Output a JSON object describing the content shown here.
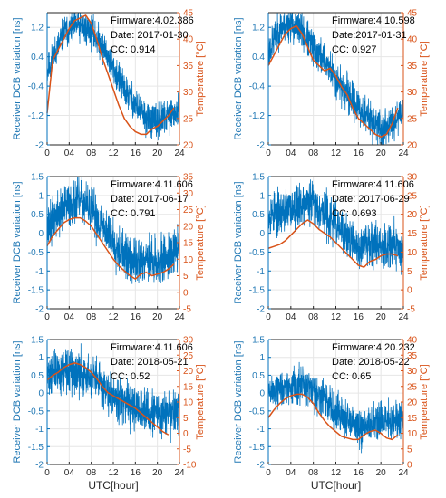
{
  "colors": {
    "dcb": "#0072bd",
    "temp": "#d95319",
    "grid": "#e6e6e6",
    "axis": "#262626"
  },
  "chart_data": [
    {
      "type": "line",
      "xlabel": "",
      "ylabel": "Receiver DCB variation [ns]",
      "y2label": "Temperature [°C]",
      "xlim": [
        0,
        24
      ],
      "xticks": [
        "0",
        "04",
        "08",
        "12",
        "16",
        "20",
        "24"
      ],
      "ylim": [
        -2,
        1.6
      ],
      "yticks": [
        "-2",
        "-1.2",
        "-0.4",
        "0.4",
        "1.2"
      ],
      "yticks_values": [
        -2,
        -1.2,
        -0.4,
        0.4,
        1.2
      ],
      "y2lim": [
        20,
        45
      ],
      "y2ticks": [
        "20",
        "25",
        "30",
        "35",
        "40",
        "45"
      ],
      "y2ticks_values": [
        20,
        25,
        30,
        35,
        40,
        45
      ],
      "annotation": [
        "Firmware:4.02.386",
        "Date: 2017-01-30",
        "CC: 0.914"
      ],
      "grid": true,
      "seed": 11,
      "noise": 0.22,
      "dcb_trend": {
        "x": [
          0,
          3,
          5.5,
          8,
          10,
          12,
          14,
          16,
          18,
          20,
          22,
          24
        ],
        "y": [
          0.0,
          1.05,
          1.25,
          1.1,
          0.7,
          0.1,
          -0.5,
          -0.9,
          -1.3,
          -1.4,
          -1.2,
          -1.1
        ]
      },
      "temperature": {
        "x": [
          0,
          1,
          2,
          3,
          4,
          5,
          6,
          7,
          8,
          9,
          10,
          11,
          12,
          13,
          14,
          15,
          16,
          17,
          18,
          19,
          20,
          21,
          22,
          23
        ],
        "y": [
          26,
          36,
          38,
          40,
          42,
          43.5,
          44,
          44.5,
          43,
          40,
          36.5,
          33.5,
          30.5,
          27.5,
          25,
          23.5,
          22.5,
          22,
          22,
          23,
          23.5,
          24.5,
          25.5,
          27
        ]
      }
    },
    {
      "type": "line",
      "xlabel": "",
      "ylabel": "Receiver DCB variation [ns]",
      "y2label": "Temperature [°C]",
      "xlim": [
        0,
        24
      ],
      "xticks": [
        "0",
        "04",
        "08",
        "12",
        "16",
        "20",
        "24"
      ],
      "ylim": [
        -2,
        1.6
      ],
      "yticks": [
        "-2",
        "-1.2",
        "-0.4",
        "0.4",
        "1.2"
      ],
      "yticks_values": [
        -2,
        -1.2,
        -0.4,
        0.4,
        1.2
      ],
      "y2lim": [
        20,
        45
      ],
      "y2ticks": [
        "20",
        "25",
        "30",
        "35",
        "40",
        "45"
      ],
      "y2ticks_values": [
        20,
        25,
        30,
        35,
        40,
        45
      ],
      "annotation": [
        "Firmware:4.10.598",
        "Date:2017-01-31",
        "CC: 0.927"
      ],
      "grid": true,
      "seed": 23,
      "noise": 0.24,
      "dcb_trend": {
        "x": [
          0,
          2,
          4,
          6,
          8,
          10,
          12,
          14,
          16,
          18,
          20,
          22,
          24
        ],
        "y": [
          0.5,
          1.2,
          1.3,
          1.1,
          0.6,
          0.3,
          -0.2,
          -0.6,
          -1.0,
          -1.3,
          -1.6,
          -1.4,
          -1.0
        ]
      },
      "temperature": {
        "x": [
          0,
          1,
          2,
          3,
          4,
          5,
          6,
          7,
          8,
          9,
          10,
          11,
          12,
          13,
          14,
          15,
          16,
          17,
          18,
          19,
          20,
          21,
          22,
          23
        ],
        "y": [
          35,
          37,
          39,
          41,
          42,
          42.5,
          41,
          38.5,
          36,
          35,
          34,
          34.5,
          33,
          31,
          29.5,
          27,
          25,
          24,
          23,
          22,
          21.5,
          22,
          24,
          27
        ]
      }
    },
    {
      "type": "line",
      "xlabel": "",
      "ylabel": "Receiver DCB variation [ns]",
      "y2label": "Temperature [°C]",
      "xlim": [
        0,
        24
      ],
      "xticks": [
        "0",
        "04",
        "08",
        "12",
        "16",
        "20",
        "24"
      ],
      "ylim": [
        -2,
        1.5
      ],
      "yticks": [
        "-2",
        "-1.5",
        "-1",
        "-0.5",
        "0",
        "0.5",
        "1",
        "1.5"
      ],
      "yticks_values": [
        -2,
        -1.5,
        -1,
        -0.5,
        0,
        0.5,
        1,
        1.5
      ],
      "y2lim": [
        -5,
        35
      ],
      "y2ticks": [
        "-5",
        "0",
        "5",
        "10",
        "15",
        "20",
        "25",
        "30",
        "35"
      ],
      "y2ticks_values": [
        -5,
        0,
        5,
        10,
        15,
        20,
        25,
        30,
        35
      ],
      "annotation": [
        "Firmware:4.11.606",
        "Date: 2017-06-17",
        "CC: 0.791"
      ],
      "grid": true,
      "seed": 37,
      "noise": 0.3,
      "dcb_trend": {
        "x": [
          0,
          2,
          4,
          6,
          8,
          10,
          12,
          14,
          16,
          18,
          20,
          22,
          24
        ],
        "y": [
          0.1,
          0.5,
          0.75,
          0.85,
          0.6,
          0.2,
          -0.2,
          -0.6,
          -0.8,
          -0.6,
          -0.8,
          -0.6,
          -0.4
        ]
      },
      "temperature": {
        "x": [
          0,
          1,
          2,
          3,
          4,
          5,
          6,
          7,
          8,
          9,
          10,
          11,
          12,
          13,
          14,
          15,
          16,
          17,
          18,
          19,
          20,
          21,
          22,
          23
        ],
        "y": [
          14,
          17,
          19,
          21,
          22,
          22.5,
          22.5,
          21.5,
          20,
          17.5,
          15,
          12.5,
          10,
          8,
          6.5,
          5,
          4,
          5.5,
          6,
          5,
          5.5,
          6,
          7,
          8.5
        ]
      }
    },
    {
      "type": "line",
      "xlabel": "",
      "ylabel": "Receiver DCB variation [ns]",
      "y2label": "Temperature [°C]",
      "xlim": [
        0,
        24
      ],
      "xticks": [
        "0",
        "04",
        "08",
        "12",
        "16",
        "20",
        "24"
      ],
      "ylim": [
        -2,
        1.5
      ],
      "yticks": [
        "-2",
        "-1.5",
        "-1",
        "-0.5",
        "0",
        "0.5",
        "1",
        "1.5"
      ],
      "yticks_values": [
        -2,
        -1.5,
        -1,
        -0.5,
        0,
        0.5,
        1,
        1.5
      ],
      "y2lim": [
        -5,
        30
      ],
      "y2ticks": [
        "-5",
        "0",
        "5",
        "10",
        "15",
        "20",
        "25",
        "30"
      ],
      "y2ticks_values": [
        -5,
        0,
        5,
        10,
        15,
        20,
        25,
        30
      ],
      "annotation": [
        "Firmware:4.11.606",
        "Date: 2017-06-29",
        "CC: 0.693"
      ],
      "grid": true,
      "seed": 53,
      "noise": 0.28,
      "dcb_trend": {
        "x": [
          0,
          2,
          4,
          6,
          8,
          10,
          12,
          14,
          16,
          18,
          20,
          22,
          24
        ],
        "y": [
          0.5,
          0.55,
          0.65,
          0.8,
          0.8,
          0.55,
          0.2,
          -0.1,
          -0.4,
          -0.2,
          -0.3,
          -0.3,
          -0.5
        ]
      },
      "temperature": {
        "x": [
          0,
          1,
          2,
          3,
          4,
          5,
          6,
          7,
          8,
          9,
          10,
          11,
          12,
          13,
          14,
          15,
          16,
          17,
          18,
          19,
          20,
          21,
          22,
          23
        ],
        "y": [
          11,
          11.5,
          12,
          13,
          14.5,
          16,
          17.5,
          18.5,
          17.5,
          16,
          15,
          14,
          12.5,
          11,
          9.5,
          8,
          6.5,
          6,
          7.5,
          8,
          9,
          9.5,
          9.5,
          9
        ]
      }
    },
    {
      "type": "line",
      "xlabel": "UTC[hour]",
      "ylabel": "Receiver DCB variation [ns]",
      "y2label": "Temperature [°C]",
      "xlim": [
        0,
        24
      ],
      "xticks": [
        "0",
        "04",
        "08",
        "12",
        "16",
        "20",
        "24"
      ],
      "ylim": [
        -2,
        1.5
      ],
      "yticks": [
        "-2",
        "-1.5",
        "-1",
        "-0.5",
        "0",
        "0.5",
        "1",
        "1.5"
      ],
      "yticks_values": [
        -2,
        -1.5,
        -1,
        -0.5,
        0,
        0.5,
        1,
        1.5
      ],
      "y2lim": [
        -10,
        30
      ],
      "y2ticks": [
        "-10",
        "-5",
        "0",
        "5",
        "10",
        "15",
        "20",
        "25",
        "30"
      ],
      "y2ticks_values": [
        -10,
        -5,
        0,
        5,
        10,
        15,
        20,
        25,
        30
      ],
      "annotation": [
        "Firmware:4.11.606",
        "Date: 2018-05-21",
        "CC: 0.52"
      ],
      "grid": true,
      "seed": 71,
      "noise": 0.3,
      "dcb_trend": {
        "x": [
          0,
          2,
          4,
          6,
          8,
          10,
          12,
          14,
          16,
          18,
          20,
          22,
          24
        ],
        "y": [
          0.55,
          0.6,
          0.6,
          0.55,
          0.4,
          0.2,
          0.0,
          -0.3,
          -0.45,
          -0.55,
          -0.6,
          -0.6,
          -0.5
        ]
      },
      "temperature": {
        "x": [
          0,
          1,
          2,
          3,
          4,
          5,
          6,
          7,
          8,
          9,
          10,
          11,
          12,
          13,
          14,
          15,
          16,
          17,
          18,
          19,
          20,
          21,
          22
        ],
        "y": [
          17,
          18.5,
          19.5,
          21,
          22,
          22.5,
          22,
          21,
          19.5,
          17.5,
          15,
          13,
          12,
          11,
          10,
          9,
          8,
          6.5,
          5,
          3.5,
          2,
          0.5,
          -0.5
        ]
      }
    },
    {
      "type": "line",
      "xlabel": "UTC[hour]",
      "ylabel": "Receiver DCB variation [ns]",
      "y2label": "Temperature [°C]",
      "xlim": [
        0,
        24
      ],
      "xticks": [
        "0",
        "04",
        "08",
        "12",
        "16",
        "20",
        "24"
      ],
      "ylim": [
        -2,
        1.5
      ],
      "yticks": [
        "-2",
        "-1.5",
        "-1",
        "-0.5",
        "0",
        "0.5",
        "1",
        "1.5"
      ],
      "yticks_values": [
        -2,
        -1.5,
        -1,
        -0.5,
        0,
        0.5,
        1,
        1.5
      ],
      "y2lim": [
        0,
        40
      ],
      "y2ticks": [
        "0",
        "5",
        "10",
        "15",
        "20",
        "25",
        "30",
        "35",
        "40"
      ],
      "y2ticks_values": [
        0,
        5,
        10,
        15,
        20,
        25,
        30,
        35,
        40
      ],
      "annotation": [
        "Firmware:4.20.232",
        "Date: 2018-05-22",
        "CC: 0.65"
      ],
      "grid": true,
      "seed": 89,
      "noise": 0.26,
      "dcb_trend": {
        "x": [
          0,
          2,
          4,
          6,
          8,
          10,
          12,
          14,
          16,
          18,
          20,
          22,
          24
        ],
        "y": [
          0.0,
          0.1,
          0.2,
          0.2,
          0.1,
          -0.2,
          -0.5,
          -0.8,
          -1.0,
          -0.9,
          -0.8,
          -0.8,
          -0.7
        ]
      },
      "temperature": {
        "x": [
          0,
          1,
          2,
          3,
          4,
          5,
          6,
          7,
          8,
          9,
          10,
          11,
          12,
          13,
          14,
          15,
          16,
          17,
          18,
          19,
          20,
          21,
          22,
          23
        ],
        "y": [
          15,
          17.5,
          19.5,
          21,
          22,
          22.5,
          22.5,
          21.5,
          19.5,
          16.5,
          14,
          12,
          10.5,
          9,
          8.5,
          8,
          8,
          9.5,
          10.5,
          11,
          10,
          8.5,
          8,
          9.5
        ]
      }
    }
  ]
}
